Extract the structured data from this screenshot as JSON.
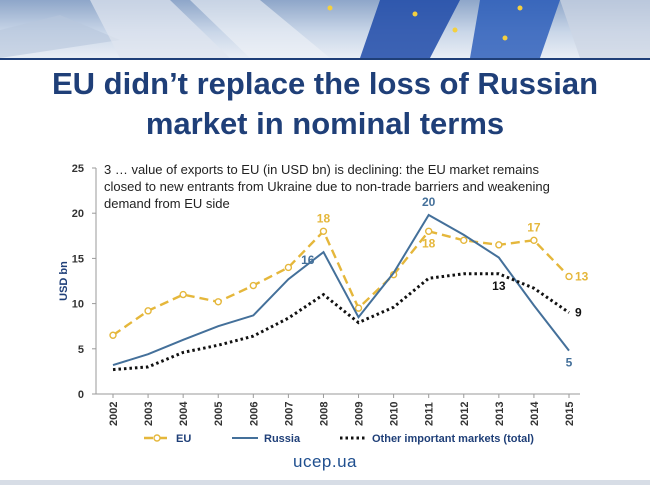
{
  "title": [
    "EU didn’t replace the loss of Russian",
    "market in nominal terms"
  ],
  "footer": "ucep.ua",
  "colors": {
    "title": "#1f3f78",
    "eu": "#e5b73b",
    "russia": "#44709a",
    "other": "#111111"
  },
  "chart_data": {
    "type": "line",
    "annotation": [
      "3 … value of exports to EU (in USD bn) is declining: the EU market remains",
      "closed to new entrants from Ukraine due to non-trade barriers and weakening",
      "demand from EU side"
    ],
    "ylabel": "USD bn",
    "xlabel": "",
    "ylim": [
      0,
      25
    ],
    "yticks": [
      "0",
      "5",
      "10",
      "15",
      "20",
      "25"
    ],
    "grid": false,
    "legend_position": "bottom",
    "x": [
      "2002",
      "2003",
      "2004",
      "2005",
      "2006",
      "2007",
      "2008",
      "2009",
      "2010",
      "2011",
      "2012",
      "2013",
      "2014",
      "2015"
    ],
    "series": [
      {
        "name": "EU",
        "style": "dashed-circle-markers",
        "color": "#e5b73b",
        "values": [
          6.5,
          9.2,
          11.0,
          10.2,
          12.0,
          14.0,
          18.0,
          9.5,
          13.2,
          18.0,
          17.0,
          16.5,
          17.0,
          13.0
        ]
      },
      {
        "name": "Russia",
        "style": "solid",
        "color": "#44709a",
        "values": [
          3.2,
          4.4,
          6.0,
          7.5,
          8.7,
          12.7,
          15.7,
          8.5,
          13.4,
          19.8,
          17.6,
          15.1,
          9.8,
          4.8
        ]
      },
      {
        "name": "Other important markets (total)",
        "style": "dotted",
        "color": "#111111",
        "values": [
          2.7,
          3.0,
          4.6,
          5.4,
          6.4,
          8.4,
          11.0,
          7.9,
          9.6,
          12.8,
          13.3,
          13.3,
          11.7,
          9.0
        ]
      }
    ],
    "data_labels": [
      {
        "series": 0,
        "index": 6,
        "text": "18",
        "pos": "above"
      },
      {
        "series": 0,
        "index": 9,
        "text": "18",
        "pos": "below"
      },
      {
        "series": 0,
        "index": 12,
        "text": "17",
        "pos": "above"
      },
      {
        "series": 0,
        "index": 13,
        "text": "13",
        "pos": "right"
      },
      {
        "series": 1,
        "index": 6,
        "text": "16",
        "pos": "left"
      },
      {
        "series": 1,
        "index": 9,
        "text": "20",
        "pos": "above"
      },
      {
        "series": 1,
        "index": 13,
        "text": "5",
        "pos": "below"
      },
      {
        "series": 2,
        "index": 11,
        "text": "13",
        "pos": "below"
      },
      {
        "series": 2,
        "index": 13,
        "text": "9",
        "pos": "right"
      }
    ]
  }
}
